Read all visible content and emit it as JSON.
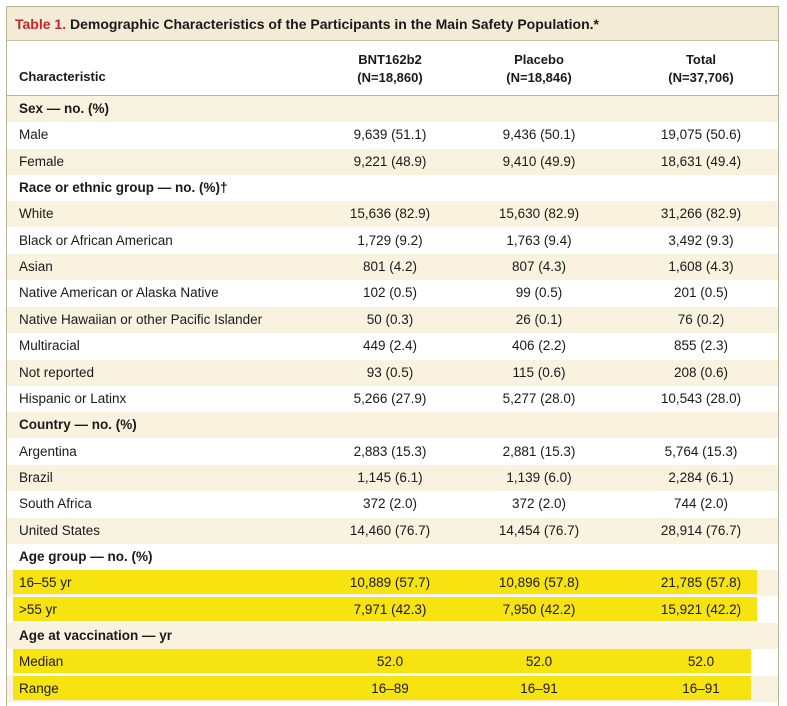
{
  "table": {
    "label": "Table 1.",
    "title": "Demographic Characteristics of the Participants in the Main Safety Population.*",
    "columns": [
      {
        "name": "BNT162b2",
        "n": "(N=18,860)"
      },
      {
        "name": "Placebo",
        "n": "(N=18,846)"
      },
      {
        "name": "Total",
        "n": "(N=37,706)"
      }
    ],
    "characteristic_header": "Characteristic",
    "rows": [
      {
        "label": "Sex — no. (%)",
        "section": true
      },
      {
        "label": "Male",
        "v": [
          "9,639 (51.1)",
          "9,436 (50.1)",
          "19,075 (50.6)"
        ]
      },
      {
        "label": "Female",
        "v": [
          "9,221 (48.9)",
          "9,410 (49.9)",
          "18,631 (49.4)"
        ]
      },
      {
        "label": "Race or ethnic group — no. (%)†",
        "section": true
      },
      {
        "label": "White",
        "v": [
          "15,636 (82.9)",
          "15,630 (82.9)",
          "31,266 (82.9)"
        ]
      },
      {
        "label": "Black or African American",
        "v": [
          "1,729 (9.2)",
          "1,763 (9.4)",
          "3,492 (9.3)"
        ]
      },
      {
        "label": "Asian",
        "v": [
          "801 (4.2)",
          "807 (4.3)",
          "1,608 (4.3)"
        ]
      },
      {
        "label": "Native American or Alaska Native",
        "v": [
          "102 (0.5)",
          "99 (0.5)",
          "201 (0.5)"
        ]
      },
      {
        "label": "Native Hawaiian or other Pacific Islander",
        "v": [
          "50 (0.3)",
          "26 (0.1)",
          "76 (0.2)"
        ]
      },
      {
        "label": "Multiracial",
        "v": [
          "449 (2.4)",
          "406 (2.2)",
          "855 (2.3)"
        ]
      },
      {
        "label": "Not reported",
        "v": [
          "93 (0.5)",
          "115 (0.6)",
          "208 (0.6)"
        ]
      },
      {
        "label": "Hispanic or Latinx",
        "v": [
          "5,266 (27.9)",
          "5,277 (28.0)",
          "10,543 (28.0)"
        ]
      },
      {
        "label": "Country — no. (%)",
        "section": true
      },
      {
        "label": "Argentina",
        "v": [
          "2,883 (15.3)",
          "2,881 (15.3)",
          "5,764 (15.3)"
        ]
      },
      {
        "label": "Brazil",
        "v": [
          "1,145 (6.1)",
          "1,139 (6.0)",
          "2,284 (6.1)"
        ]
      },
      {
        "label": "South Africa",
        "v": [
          "372 (2.0)",
          "372 (2.0)",
          "744 (2.0)"
        ]
      },
      {
        "label": "United States",
        "v": [
          "14,460 (76.7)",
          "14,454 (76.7)",
          "28,914 (76.7)"
        ]
      },
      {
        "label": "Age group — no. (%)",
        "section": true
      },
      {
        "label": "16–55 yr",
        "v": [
          "10,889 (57.7)",
          "10,896 (57.8)",
          "21,785 (57.8)"
        ],
        "highlight": "hl1"
      },
      {
        "label": ">55 yr",
        "v": [
          "7,971 (42.3)",
          "7,950 (42.2)",
          "15,921 (42.2)"
        ],
        "highlight": "hl1"
      },
      {
        "label": "Age at vaccination — yr",
        "section": true
      },
      {
        "label": "Median",
        "v": [
          "52.0",
          "52.0",
          "52.0"
        ],
        "highlight": "hl2"
      },
      {
        "label": "Range",
        "v": [
          "16–89",
          "16–91",
          "16–91"
        ],
        "highlight": "hl2"
      }
    ]
  },
  "colors": {
    "title_label": "#c0262c",
    "title_bar_bg": "#f3ebd6",
    "row_shade": "#f8f2df",
    "highlight": "#f7e30f"
  }
}
